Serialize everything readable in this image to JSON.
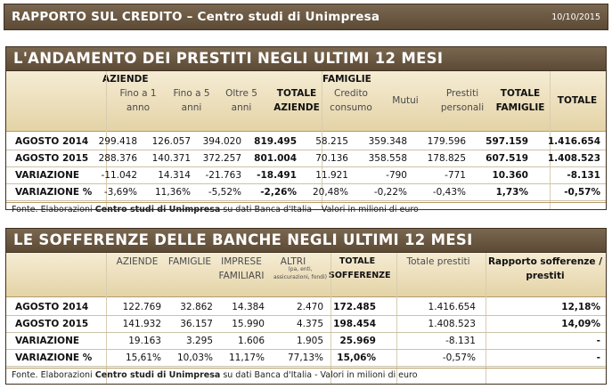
{
  "header": {
    "title": "RAPPORTO SUL CREDITO – Centro studi di Unimpresa",
    "date": "10/10/2015"
  },
  "prestiti": {
    "title": "L'ANDAMENTO DEI PRESTITI NEGLI ULTIMI 12 MESI",
    "group_aziende": "AZIENDE",
    "group_famiglie": "FAMIGLIE",
    "columns": [
      "Fino a 1 anno",
      "Fino a 5 anni",
      "Oltre 5 anni",
      "TOTALE AZIENDE",
      "Credito consumo",
      "Mutui",
      "Prestiti personali",
      "TOTALE FAMIGLIE",
      "TOTALE"
    ],
    "rows": [
      {
        "label": "AGOSTO 2014",
        "values": [
          "299.418",
          "126.057",
          "394.020",
          "819.495",
          "58.215",
          "359.348",
          "179.596",
          "597.159",
          "1.416.654"
        ]
      },
      {
        "label": "AGOSTO 2015",
        "values": [
          "288.376",
          "140.371",
          "372.257",
          "801.004",
          "70.136",
          "358.558",
          "178.825",
          "607.519",
          "1.408.523"
        ]
      },
      {
        "label": "VARIAZIONE",
        "values": [
          "-11.042",
          "14.314",
          "-21.763",
          "-18.491",
          "11.921",
          "-790",
          "-771",
          "10.360",
          "-8.131"
        ]
      },
      {
        "label": "VARIAZIONE %",
        "values": [
          "-3,69%",
          "11,36%",
          "-5,52%",
          "-2,26%",
          "20,48%",
          "-0,22%",
          "-0,43%",
          "1,73%",
          "-0,57%"
        ]
      }
    ],
    "fonte_prefix": "Fonte. Elaborazioni ",
    "fonte_bold": "Centro studi di Unimpresa",
    "fonte_suffix": " su dati Banca d'Italia – Valori in milioni di euro"
  },
  "sofferenze": {
    "title": "LE SOFFERENZE DELLE BANCHE NEGLI ULTIMI 12 MESI",
    "col_aziende": "AZIENDE",
    "col_famiglie": "FAMIGLIE",
    "col_imprese": "IMPRESE FAMILIARI",
    "col_altri": "ALTRI",
    "col_altri_note": "(pa, enti, assicurazioni, fondi)",
    "col_totale": "TOTALE SOFFERENZE",
    "col_prestiti": "Totale prestiti",
    "col_rapporto": "Rapporto sofferenze / prestiti",
    "rows": [
      {
        "label": "AGOSTO 2014",
        "values": [
          "122.769",
          "32.862",
          "14.384",
          "2.470",
          "172.485",
          "1.416.654",
          "12,18%"
        ]
      },
      {
        "label": "AGOSTO 2015",
        "values": [
          "141.932",
          "36.157",
          "15.990",
          "4.375",
          "198.454",
          "1.408.523",
          "14,09%"
        ]
      },
      {
        "label": "VARIAZIONE",
        "values": [
          "19.163",
          "3.295",
          "1.606",
          "1.905",
          "25.969",
          "-8.131",
          "-"
        ]
      },
      {
        "label": "VARIAZIONE %",
        "values": [
          "15,61%",
          "10,03%",
          "11,17%",
          "77,13%",
          "15,06%",
          "-0,57%",
          "-"
        ]
      }
    ],
    "fonte_prefix": "Fonte. Elaborazioni ",
    "fonte_bold": "Centro studi di Unimpresa",
    "fonte_suffix": " su dati Banca d'Italia - Valori in milioni di euro"
  }
}
